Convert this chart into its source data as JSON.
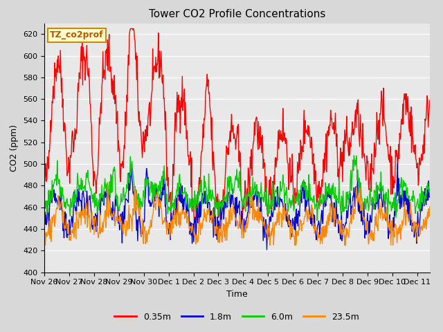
{
  "title": "Tower CO2 Profile Concentrations",
  "xlabel": "Time",
  "ylabel": "CO2 (ppm)",
  "ylim": [
    400,
    630
  ],
  "yticks": [
    400,
    420,
    440,
    460,
    480,
    500,
    520,
    540,
    560,
    580,
    600,
    620
  ],
  "annotation": "TZ_co2prof",
  "annotation_bg": "#ffffcc",
  "annotation_border": "#cc8800",
  "fig_bg": "#d8d8d8",
  "plot_bg": "#e8e8e8",
  "series_colors": [
    "#ff0000",
    "#0000cc",
    "#00cc00",
    "#ff8800"
  ],
  "series_linewidths": [
    1.0,
    1.0,
    1.0,
    1.0
  ],
  "legend_labels": [
    "0.35m",
    "1.8m",
    "6.0m",
    "23.5m"
  ],
  "tick_days": [
    "Nov 26",
    "Nov 27",
    "Nov 28",
    "Nov 29",
    "Nov 30",
    "Dec 1",
    "Dec 2",
    "Dec 3",
    "Dec 4",
    "Dec 5",
    "Dec 6",
    "Dec 7",
    "Dec 8",
    "Dec 9",
    "Dec 10",
    "Dec 11"
  ]
}
